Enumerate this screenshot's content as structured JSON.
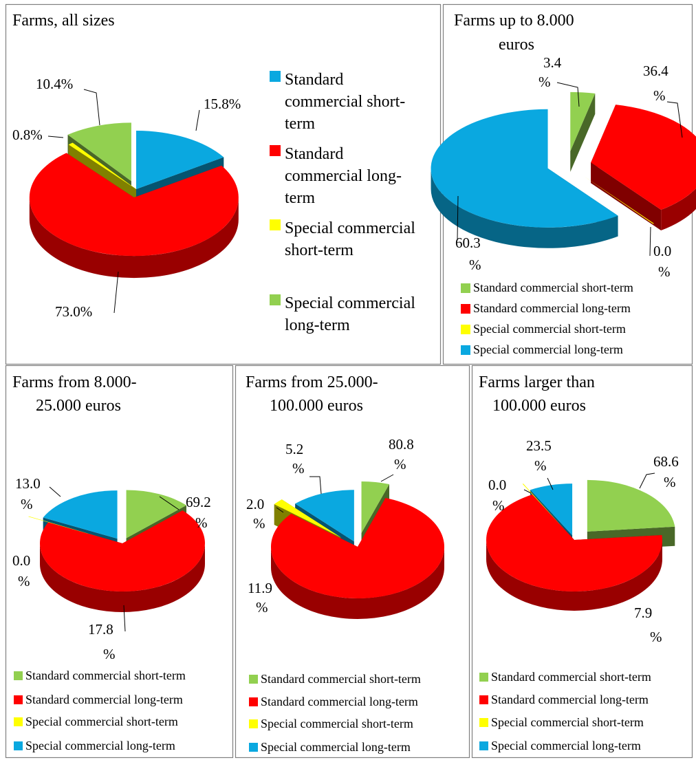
{
  "chart_data": [
    {
      "type": "pie",
      "title": "Farms, all sizes",
      "legend_placement": "right",
      "legend": [
        "Standard commercial short-term",
        "Standard commercial long-term",
        "Special commercial short-term",
        "Special commercial long-term"
      ],
      "legend_lines": [
        [
          "Standard",
          "commercial short-",
          "term"
        ],
        [
          "Standard",
          "commercial long-",
          "term"
        ],
        [
          "Special commercial",
          "short-term"
        ],
        [
          "Special commercial",
          "long-term"
        ]
      ],
      "slices": [
        {
          "color": "#0aa8e0",
          "value": 15.8,
          "label": "15.8%"
        },
        {
          "color": "#ff0000",
          "value": 73.0,
          "label": "73.0%"
        },
        {
          "color": "#ffff00",
          "value": 0.8,
          "label": "0.8%"
        },
        {
          "color": "#92d050",
          "value": 10.4,
          "label": "10.4%"
        }
      ]
    },
    {
      "type": "pie",
      "title": "Farms up to 8.000 euros",
      "legend_placement": "bottom",
      "legend": [
        "Standard commercial short-term",
        "Standard commercial long-term",
        "Special commercial short-term",
        "Special commercial long-term"
      ],
      "legend_colors": [
        "#92d050",
        "#ff0000",
        "#ffff00",
        "#0aa8e0"
      ],
      "slices": [
        {
          "color": "#92d050",
          "value": 3.4,
          "label": "3.4 %"
        },
        {
          "color": "#ff0000",
          "value": 36.4,
          "label": "36.4 %"
        },
        {
          "color": "#ffff00",
          "value": 0.0,
          "label": "0.0 %"
        },
        {
          "color": "#0aa8e0",
          "value": 60.3,
          "label": "60.3 %"
        }
      ]
    },
    {
      "type": "pie",
      "title": "Farms from 8.000-25.000 euros",
      "legend_placement": "bottom",
      "legend": [
        "Standard commercial short-term",
        "Standard commercial long-term",
        "Special commercial short-term",
        "Special commercial long-term"
      ],
      "legend_colors": [
        "#92d050",
        "#ff0000",
        "#ffff00",
        "#0aa8e0"
      ],
      "slices": [
        {
          "color": "#92d050",
          "value": 13.0,
          "label": "13.0 %"
        },
        {
          "color": "#ff0000",
          "value": 69.2,
          "label": "69.2 %"
        },
        {
          "color": "#ffff00",
          "value": 0.0,
          "label": "0.0 %"
        },
        {
          "color": "#0aa8e0",
          "value": 17.8,
          "label": "17.8 %"
        }
      ]
    },
    {
      "type": "pie",
      "title": "Farms from 25.000-100.000 euros",
      "legend_placement": "bottom",
      "legend": [
        "Standard commercial short-term",
        "Standard commercial long-term",
        "Special commercial short-term",
        "Special commercial long-term"
      ],
      "legend_colors": [
        "#92d050",
        "#ff0000",
        "#ffff00",
        "#0aa8e0"
      ],
      "slices": [
        {
          "color": "#92d050",
          "value": 5.2,
          "label": "5.2 %"
        },
        {
          "color": "#ff0000",
          "value": 80.8,
          "label": "80.8 %"
        },
        {
          "color": "#ffff00",
          "value": 2.0,
          "label": "2.0 %"
        },
        {
          "color": "#0aa8e0",
          "value": 11.9,
          "label": "11.9 %"
        }
      ]
    },
    {
      "type": "pie",
      "title": "Farms larger than 100.000 euros",
      "legend_placement": "bottom",
      "legend": [
        "Standard commercial short-term",
        "Standard commercial long-term",
        "Special commercial short-term",
        "Special commercial long-term"
      ],
      "legend_colors": [
        "#92d050",
        "#ff0000",
        "#ffff00",
        "#0aa8e0"
      ],
      "slices": [
        {
          "color": "#92d050",
          "value": 23.5,
          "label": "23.5 %"
        },
        {
          "color": "#ff0000",
          "value": 68.6,
          "label": "68.6 %"
        },
        {
          "color": "#ffff00",
          "value": 0.0,
          "label": "0.0 %"
        },
        {
          "color": "#0aa8e0",
          "value": 7.9,
          "label": "7.9 %"
        }
      ]
    }
  ]
}
